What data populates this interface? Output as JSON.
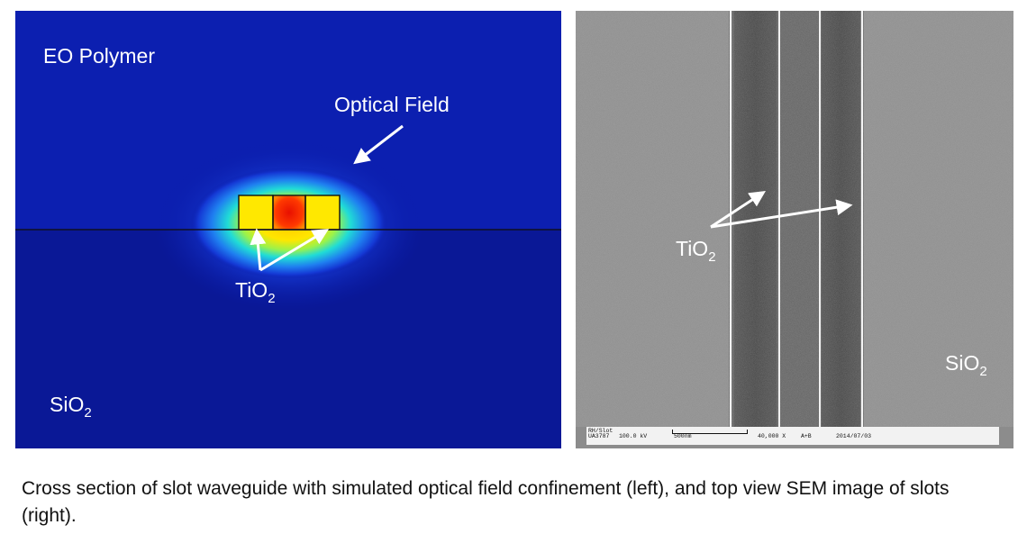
{
  "figure": {
    "left_panel": {
      "labels": {
        "eo_polymer": "EO Polymer",
        "optical_field": "Optical Field",
        "tio2_main": "TiO",
        "tio2_sub": "2",
        "sio2_main": "SiO",
        "sio2_sub": "2"
      }
    },
    "right_panel": {
      "labels": {
        "tio2_main": "TiO",
        "tio2_sub": "2",
        "sio2_main": "SiO",
        "sio2_sub": "2"
      },
      "databar": {
        "name": "RH/Slot",
        "id": "UA3787",
        "voltage": "100.0 kV",
        "scale": "500nm",
        "magnification": "40,000 X",
        "mode": "A+B",
        "date": "2014/07/03"
      }
    },
    "caption": "Cross section of slot waveguide with simulated optical field confinement (left), and top view SEM image of slots (right)."
  }
}
